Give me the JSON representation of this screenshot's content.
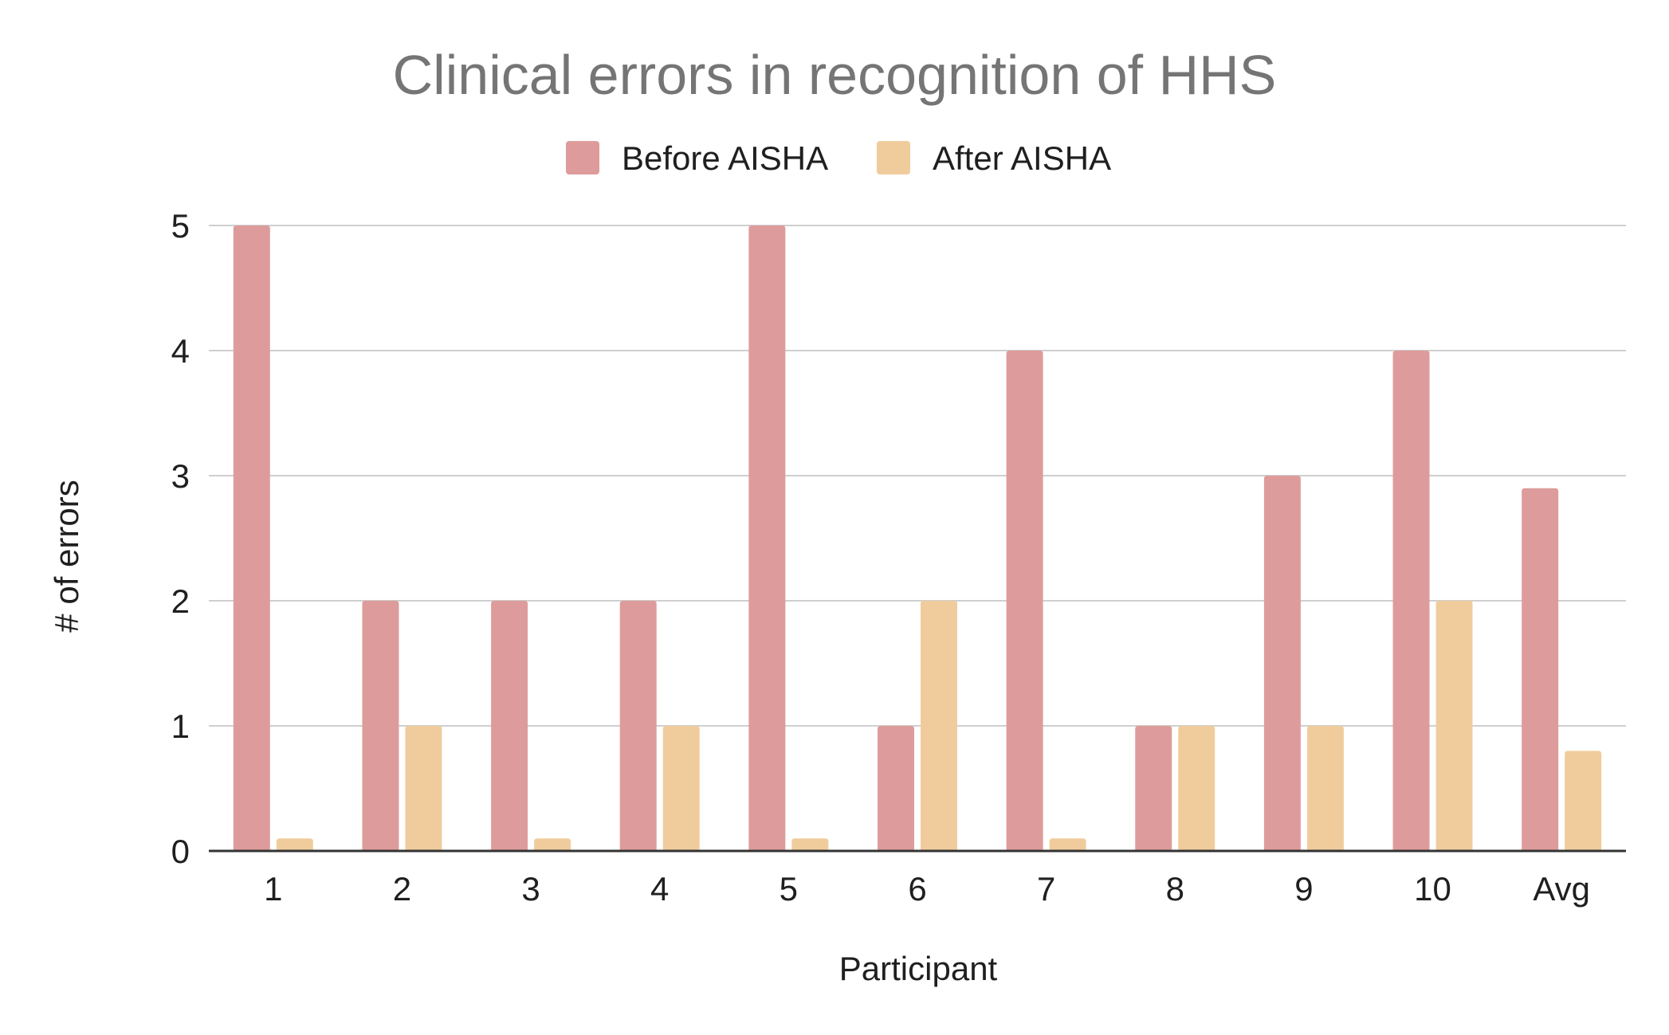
{
  "chart_data": {
    "type": "bar",
    "title": "Clinical errors in recognition of HHS",
    "xlabel": "Participant",
    "ylabel": "# of errors",
    "categories": [
      "1",
      "2",
      "3",
      "4",
      "5",
      "6",
      "7",
      "8",
      "9",
      "10",
      "Avg"
    ],
    "series": [
      {
        "name": "Before AISHA",
        "color": "#dd9c9b",
        "values": [
          5,
          2,
          2,
          2,
          5,
          1,
          4,
          1,
          3,
          4,
          2.9
        ]
      },
      {
        "name": "After AISHA",
        "color": "#f0cc9d",
        "values": [
          0.1,
          1,
          0.1,
          1,
          0.1,
          2,
          0.1,
          1,
          1,
          2,
          0.8
        ]
      }
    ],
    "ylim": [
      0,
      5
    ],
    "yticks": [
      "0",
      "1",
      "2",
      "3",
      "4",
      "5"
    ],
    "grid": true,
    "legend_position": "top-center"
  }
}
